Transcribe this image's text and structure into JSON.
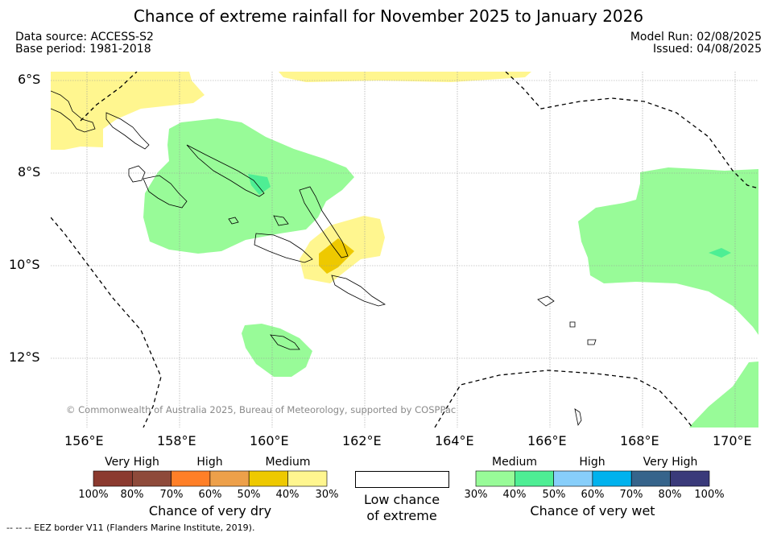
{
  "title": "Chance of extreme rainfall for November 2025 to January 2026",
  "data_source": "Data source: ACCESS-S2",
  "base_period": "Base period: 1981-2018",
  "model_run": "Model Run: 02/08/2025",
  "issued": "Issued: 04/08/2025",
  "map": {
    "lat_labels": [
      "6°S",
      "8°S",
      "10°S",
      "12°S"
    ],
    "lon_labels": [
      "156°E",
      "158°E",
      "160°E",
      "162°E",
      "164°E",
      "166°E",
      "168°E",
      "170°E"
    ],
    "copyright": "© Commonwealth of Australia 2025, Bureau of Meteorology, supported by COSPPac"
  },
  "legend_dry": {
    "categories": [
      "Very High",
      "High",
      "Medium"
    ],
    "ticks": [
      "100%",
      "80%",
      "70%",
      "60%",
      "50%",
      "40%",
      "30%"
    ],
    "colors": [
      "#8b3a2f",
      "#8e4a3a",
      "#ff7f27",
      "#eda04a",
      "#eec900",
      "#fff68f"
    ],
    "title": "Chance of very dry"
  },
  "legend_neutral": {
    "line1": "Low chance",
    "line2": "of extreme"
  },
  "legend_wet": {
    "categories": [
      "Medium",
      "High",
      "Very High"
    ],
    "ticks": [
      "30%",
      "40%",
      "50%",
      "60%",
      "70%",
      "80%",
      "100%"
    ],
    "colors": [
      "#98fb98",
      "#4eee94",
      "#87cefa",
      "#00b2ee",
      "#36648b",
      "#3a3a7a"
    ],
    "title": "Chance of very wet"
  },
  "footnote": "--  --  -- EEZ border V11 (Flanders Marine Institute, 2019)."
}
